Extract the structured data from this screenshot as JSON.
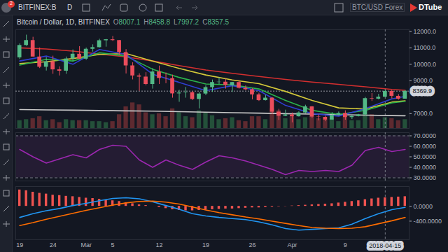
{
  "toolbar": {
    "symbol": "BITFINEX:B",
    "interval": "D",
    "search": "BTC/USD Forex",
    "logo": "DTube",
    "badge": 2
  },
  "chart_data": [
    {
      "type": "candlestick",
      "title": "Bitcoin / Dollar, 1D, BITFINEX",
      "ohlc_prefixes": [
        "O",
        "H",
        "L",
        "C"
      ],
      "categories": [
        "19",
        null,
        null,
        null,
        null,
        "24",
        null,
        null,
        null,
        null,
        "Mar",
        null,
        null,
        null,
        "5",
        null,
        null,
        null,
        null,
        null,
        null,
        "12",
        null,
        null,
        null,
        null,
        null,
        null,
        "19",
        null,
        null,
        null,
        null,
        null,
        null,
        "26",
        null,
        null,
        null,
        null,
        null,
        "Apr",
        null,
        null,
        null,
        null,
        null,
        null,
        null,
        "9",
        null,
        null,
        null,
        null,
        null,
        "2018-04-15",
        null,
        null,
        null
      ],
      "open": [
        10400,
        11150,
        11450,
        10450,
        9830,
        10160,
        9670,
        9590,
        10330,
        10620,
        10320,
        10920,
        11020,
        11440,
        11500,
        11450,
        10720,
        9910,
        9300,
        9230,
        8780,
        9540,
        9150,
        9140,
        8210,
        8260,
        8280,
        7870,
        8200,
        8590,
        8900,
        8920,
        8720,
        8900,
        8550,
        8460,
        8150,
        7800,
        7950,
        7100,
        6850,
        6930,
        6820,
        7050,
        7420,
        6800,
        6780,
        6620,
        6900,
        7020,
        6770,
        6830,
        6930,
        7920,
        7890,
        8007.1,
        8357.5,
        8060,
        7890
      ],
      "high": [
        11250,
        11780,
        11650,
        11000,
        10430,
        10500,
        9850,
        10450,
        10880,
        11080,
        11000,
        11190,
        11530,
        11520,
        11700,
        11450,
        10900,
        10100,
        9430,
        9500,
        9750,
        9900,
        9480,
        9350,
        8430,
        8600,
        8350,
        8300,
        8700,
        9050,
        9180,
        9100,
        8900,
        9030,
        8700,
        8520,
        8250,
        8120,
        7980,
        7270,
        7220,
        7050,
        7120,
        7520,
        7440,
        6930,
        6860,
        7070,
        7110,
        7180,
        6890,
        6960,
        8000,
        8230,
        8180,
        8458.8,
        8420,
        8170,
        8380
      ],
      "low": [
        10300,
        11100,
        10450,
        9750,
        9600,
        9400,
        9300,
        9400,
        10150,
        10300,
        10250,
        10750,
        11000,
        11050,
        11400,
        10550,
        9420,
        9060,
        8370,
        8700,
        8500,
        8780,
        8830,
        7950,
        7700,
        7950,
        7800,
        7300,
        8100,
        8300,
        8780,
        8500,
        8300,
        8500,
        8400,
        7850,
        7750,
        7780,
        6950,
        6600,
        6830,
        6450,
        6800,
        7010,
        6720,
        6570,
        6520,
        6610,
        6880,
        6610,
        6650,
        6810,
        6850,
        7750,
        7850,
        7997.2,
        7900,
        7830,
        7880
      ],
      "close": [
        11150,
        11450,
        10450,
        9830,
        10160,
        9670,
        9590,
        10330,
        10620,
        10320,
        10920,
        11020,
        11440,
        11500,
        11450,
        10720,
        9910,
        9300,
        9230,
        8780,
        9540,
        9150,
        9140,
        8210,
        8260,
        8280,
        7870,
        8200,
        8590,
        8900,
        8920,
        8720,
        8900,
        8550,
        8460,
        8150,
        7800,
        7950,
        7100,
        6850,
        6930,
        6820,
        7050,
        7420,
        6800,
        6780,
        6620,
        6900,
        7020,
        6770,
        6830,
        6930,
        7920,
        7890,
        8010,
        8357.5,
        8060,
        7890,
        8369.9
      ],
      "series": [
        {
          "type": "bar",
          "axis": "y2",
          "values": [
            8,
            9,
            10,
            12,
            8,
            9,
            6,
            9,
            8,
            8,
            8,
            7,
            7,
            6,
            7,
            14,
            22,
            26,
            24,
            16,
            14,
            15,
            12,
            20,
            16,
            12,
            11,
            18,
            16,
            13,
            9,
            10,
            11,
            8,
            7,
            12,
            12,
            9,
            20,
            18,
            10,
            12,
            9,
            11,
            12,
            10,
            9,
            10,
            7,
            12,
            8,
            8,
            22,
            14,
            9,
            11,
            10,
            8,
            9
          ]
        },
        {
          "type": "line",
          "color": "#c8c8c8",
          "x": [
            0,
            4,
            8,
            12,
            16,
            20,
            24,
            28,
            32,
            36,
            40,
            44,
            48,
            52,
            56,
            58
          ],
          "values": [
            7250,
            7230,
            7210,
            7190,
            7170,
            7150,
            7120,
            7090,
            7060,
            7030,
            7000,
            6970,
            6940,
            6910,
            6880,
            6870
          ]
        },
        {
          "type": "line",
          "color": "#d32f2f",
          "x": [
            0,
            4,
            8,
            12,
            16,
            20,
            24,
            28,
            32,
            36,
            40,
            44,
            48,
            52,
            56,
            58
          ],
          "values": [
            11000,
            10930,
            10800,
            10620,
            10450,
            10200,
            9920,
            9650,
            9450,
            9260,
            9080,
            8920,
            8780,
            8630,
            8470,
            8420
          ]
        },
        {
          "type": "line",
          "color": "#d4c93a",
          "x": [
            0,
            4,
            8,
            12,
            16,
            20,
            24,
            28,
            32,
            36,
            40,
            44,
            48,
            52,
            56,
            58
          ],
          "values": [
            10050,
            10150,
            10350,
            10600,
            10650,
            10200,
            9750,
            9350,
            9050,
            8820,
            8350,
            7800,
            7350,
            7280,
            7700,
            7780
          ]
        },
        {
          "type": "line",
          "color": "#2bb24c",
          "x": [
            0,
            4,
            8,
            12,
            16,
            20,
            24,
            28,
            32,
            36,
            40,
            44,
            48,
            52,
            56,
            58
          ],
          "values": [
            9950,
            10300,
            10200,
            10700,
            10500,
            9700,
            9200,
            8800,
            8750,
            8500,
            7800,
            7200,
            6950,
            7200,
            7650,
            7750
          ]
        },
        {
          "type": "line",
          "color": "#2f3fd1",
          "x": [
            0,
            4,
            8,
            12,
            16,
            20,
            24,
            28,
            32,
            36,
            40,
            44,
            48,
            52,
            56,
            58
          ],
          "values": [
            10200,
            10500,
            10000,
            10900,
            10600,
            9400,
            8900,
            8400,
            8700,
            8400,
            7500,
            7000,
            6850,
            7300,
            7900,
            8050
          ]
        }
      ],
      "ylim": [
        6100,
        12100
      ],
      "yticks": [
        {
          "value": 7000,
          "label": "7000.0"
        },
        {
          "value": 9000,
          "label": "9000.0"
        },
        {
          "value": 10000,
          "label": "10000.0"
        },
        {
          "value": 11000,
          "label": "11000.0"
        },
        {
          "value": 12000,
          "label": "12000.0"
        }
      ],
      "y2lim": [
        0,
        100
      ],
      "last_price": 8369.9,
      "grid": false,
      "tick_labels": "y"
    },
    {
      "type": "line",
      "categories": [
        "19",
        null,
        null,
        null,
        null,
        "24",
        null,
        null,
        null,
        null,
        "Mar",
        null,
        null,
        null,
        "5",
        null,
        null,
        null,
        null,
        null,
        null,
        "12",
        null,
        null,
        null,
        null,
        null,
        null,
        "19",
        null,
        null,
        null,
        null,
        null,
        null,
        "26",
        null,
        null,
        null,
        null,
        null,
        "Apr",
        null,
        null,
        null,
        null,
        null,
        null,
        null,
        "9",
        null,
        null,
        null,
        null,
        null,
        "2018-04-15",
        null,
        null,
        null
      ],
      "series": [
        {
          "type": "line",
          "color": "#9c27b0",
          "x": [
            0,
            2,
            4,
            6,
            8,
            10,
            12,
            14,
            16,
            18,
            20,
            22,
            24,
            26,
            28,
            30,
            32,
            34,
            36,
            38,
            40,
            42,
            44,
            46,
            48,
            50,
            52,
            54,
            56,
            58
          ],
          "values": [
            57,
            50,
            44,
            48,
            52,
            49,
            57,
            61,
            60,
            47,
            40,
            47,
            42,
            38,
            45,
            51,
            49,
            46,
            42,
            38,
            33,
            37,
            36,
            37,
            36,
            42,
            56,
            59,
            55,
            57
          ]
        }
      ],
      "ylim": [
        27,
        73
      ],
      "yticks": [
        {
          "value": 30,
          "label": "30.0000"
        },
        {
          "value": 40,
          "label": "40.0000"
        },
        {
          "value": 50,
          "label": "50.0000"
        },
        {
          "value": 60,
          "label": "60.0000"
        },
        {
          "value": 70,
          "label": "70.0000"
        }
      ],
      "grid": false,
      "tick_labels": "y"
    },
    {
      "type": "line",
      "categories": [
        "19",
        null,
        null,
        null,
        null,
        "24",
        null,
        null,
        null,
        null,
        "Mar",
        null,
        null,
        null,
        "5",
        null,
        null,
        null,
        null,
        null,
        null,
        "12",
        null,
        null,
        null,
        null,
        null,
        null,
        "19",
        null,
        null,
        null,
        null,
        null,
        null,
        "26",
        null,
        null,
        null,
        null,
        null,
        "Apr",
        null,
        null,
        null,
        null,
        null,
        null,
        null,
        "9",
        null,
        null,
        null,
        null,
        null,
        "2018-04-15",
        null,
        null,
        null
      ],
      "series": [
        {
          "type": "bar",
          "color": "#ef5350",
          "values": [
            440,
            420,
            380,
            350,
            330,
            300,
            290,
            270,
            260,
            240,
            220,
            210,
            190,
            170,
            150,
            130,
            100,
            70,
            40,
            20,
            0,
            -30,
            -60,
            -90,
            -110,
            -120,
            -120,
            -110,
            -100,
            -90,
            -80,
            -70,
            -70,
            -60,
            -50,
            -40,
            -40,
            -30,
            -20,
            -10,
            -5,
            10,
            20,
            30,
            40,
            50,
            60,
            70,
            90,
            110,
            130,
            150,
            180,
            200,
            220,
            230,
            240,
            250,
            260
          ]
        },
        {
          "type": "line",
          "color": "#2196f3",
          "x": [
            0,
            2,
            4,
            6,
            8,
            10,
            12,
            14,
            16,
            18,
            20,
            22,
            24,
            26,
            28,
            30,
            32,
            34,
            36,
            38,
            40,
            42,
            44,
            46,
            48,
            50,
            52,
            54,
            56,
            58
          ],
          "values": [
            -300,
            -200,
            -120,
            -60,
            20,
            80,
            150,
            210,
            230,
            200,
            120,
            20,
            -80,
            -200,
            -260,
            -300,
            -330,
            -360,
            -420,
            -500,
            -600,
            -640,
            -620,
            -600,
            -580,
            -480,
            -330,
            -200,
            -90,
            -30
          ]
        },
        {
          "type": "line",
          "color": "#ff6d00",
          "x": [
            0,
            2,
            4,
            6,
            8,
            10,
            12,
            14,
            16,
            18,
            20,
            22,
            24,
            26,
            28,
            30,
            32,
            34,
            36,
            38,
            40,
            42,
            44,
            46,
            48,
            50,
            52,
            54,
            56,
            58
          ],
          "values": [
            -520,
            -440,
            -350,
            -270,
            -190,
            -110,
            -40,
            30,
            90,
            130,
            140,
            110,
            60,
            -20,
            -100,
            -170,
            -230,
            -290,
            -340,
            -400,
            -460,
            -520,
            -570,
            -590,
            -600,
            -590,
            -550,
            -470,
            -390,
            -300
          ]
        }
      ],
      "ylim": [
        -900,
        530
      ],
      "yticks": [
        {
          "value": -400,
          "label": "-400.0000"
        },
        {
          "value": 0,
          "label": "0.0000"
        }
      ],
      "grid": false
    }
  ]
}
